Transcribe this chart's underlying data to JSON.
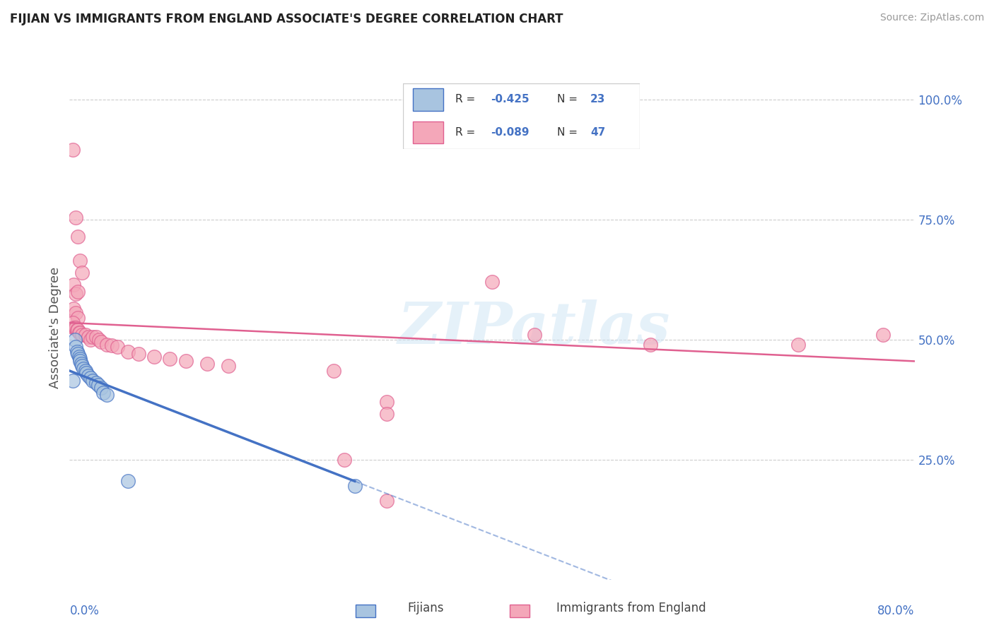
{
  "title": "FIJIAN VS IMMIGRANTS FROM ENGLAND ASSOCIATE'S DEGREE CORRELATION CHART",
  "source": "Source: ZipAtlas.com",
  "ylabel": "Associate's Degree",
  "right_yticks": [
    "100.0%",
    "75.0%",
    "50.0%",
    "25.0%"
  ],
  "right_ytick_vals": [
    1.0,
    0.75,
    0.5,
    0.25
  ],
  "fijian_color": "#a8c4e0",
  "england_color": "#f4a7b9",
  "fijian_line_color": "#4472c4",
  "england_line_color": "#e06090",
  "watermark": "ZIPatlas",
  "fijian_points": [
    [
      0.003,
      0.415
    ],
    [
      0.005,
      0.5
    ],
    [
      0.006,
      0.485
    ],
    [
      0.007,
      0.475
    ],
    [
      0.008,
      0.47
    ],
    [
      0.009,
      0.465
    ],
    [
      0.01,
      0.46
    ],
    [
      0.01,
      0.455
    ],
    [
      0.011,
      0.45
    ],
    [
      0.012,
      0.445
    ],
    [
      0.013,
      0.44
    ],
    [
      0.015,
      0.435
    ],
    [
      0.016,
      0.43
    ],
    [
      0.018,
      0.425
    ],
    [
      0.02,
      0.42
    ],
    [
      0.022,
      0.415
    ],
    [
      0.025,
      0.41
    ],
    [
      0.027,
      0.405
    ],
    [
      0.03,
      0.4
    ],
    [
      0.032,
      0.39
    ],
    [
      0.035,
      0.385
    ],
    [
      0.055,
      0.205
    ],
    [
      0.27,
      0.195
    ]
  ],
  "england_points": [
    [
      0.003,
      0.895
    ],
    [
      0.006,
      0.755
    ],
    [
      0.008,
      0.715
    ],
    [
      0.01,
      0.665
    ],
    [
      0.012,
      0.64
    ],
    [
      0.004,
      0.615
    ],
    [
      0.006,
      0.595
    ],
    [
      0.008,
      0.6
    ],
    [
      0.004,
      0.565
    ],
    [
      0.006,
      0.555
    ],
    [
      0.008,
      0.545
    ],
    [
      0.003,
      0.535
    ],
    [
      0.004,
      0.525
    ],
    [
      0.005,
      0.525
    ],
    [
      0.006,
      0.525
    ],
    [
      0.007,
      0.52
    ],
    [
      0.008,
      0.52
    ],
    [
      0.009,
      0.515
    ],
    [
      0.01,
      0.515
    ],
    [
      0.012,
      0.51
    ],
    [
      0.015,
      0.51
    ],
    [
      0.018,
      0.505
    ],
    [
      0.02,
      0.5
    ],
    [
      0.022,
      0.505
    ],
    [
      0.025,
      0.505
    ],
    [
      0.028,
      0.5
    ],
    [
      0.03,
      0.495
    ],
    [
      0.035,
      0.49
    ],
    [
      0.04,
      0.488
    ],
    [
      0.045,
      0.485
    ],
    [
      0.055,
      0.475
    ],
    [
      0.065,
      0.47
    ],
    [
      0.08,
      0.465
    ],
    [
      0.095,
      0.46
    ],
    [
      0.11,
      0.455
    ],
    [
      0.13,
      0.45
    ],
    [
      0.15,
      0.445
    ],
    [
      0.25,
      0.435
    ],
    [
      0.4,
      0.62
    ],
    [
      0.44,
      0.51
    ],
    [
      0.26,
      0.25
    ],
    [
      0.3,
      0.165
    ],
    [
      0.55,
      0.49
    ],
    [
      0.69,
      0.49
    ],
    [
      0.3,
      0.37
    ],
    [
      0.3,
      0.345
    ],
    [
      0.77,
      0.51
    ]
  ]
}
